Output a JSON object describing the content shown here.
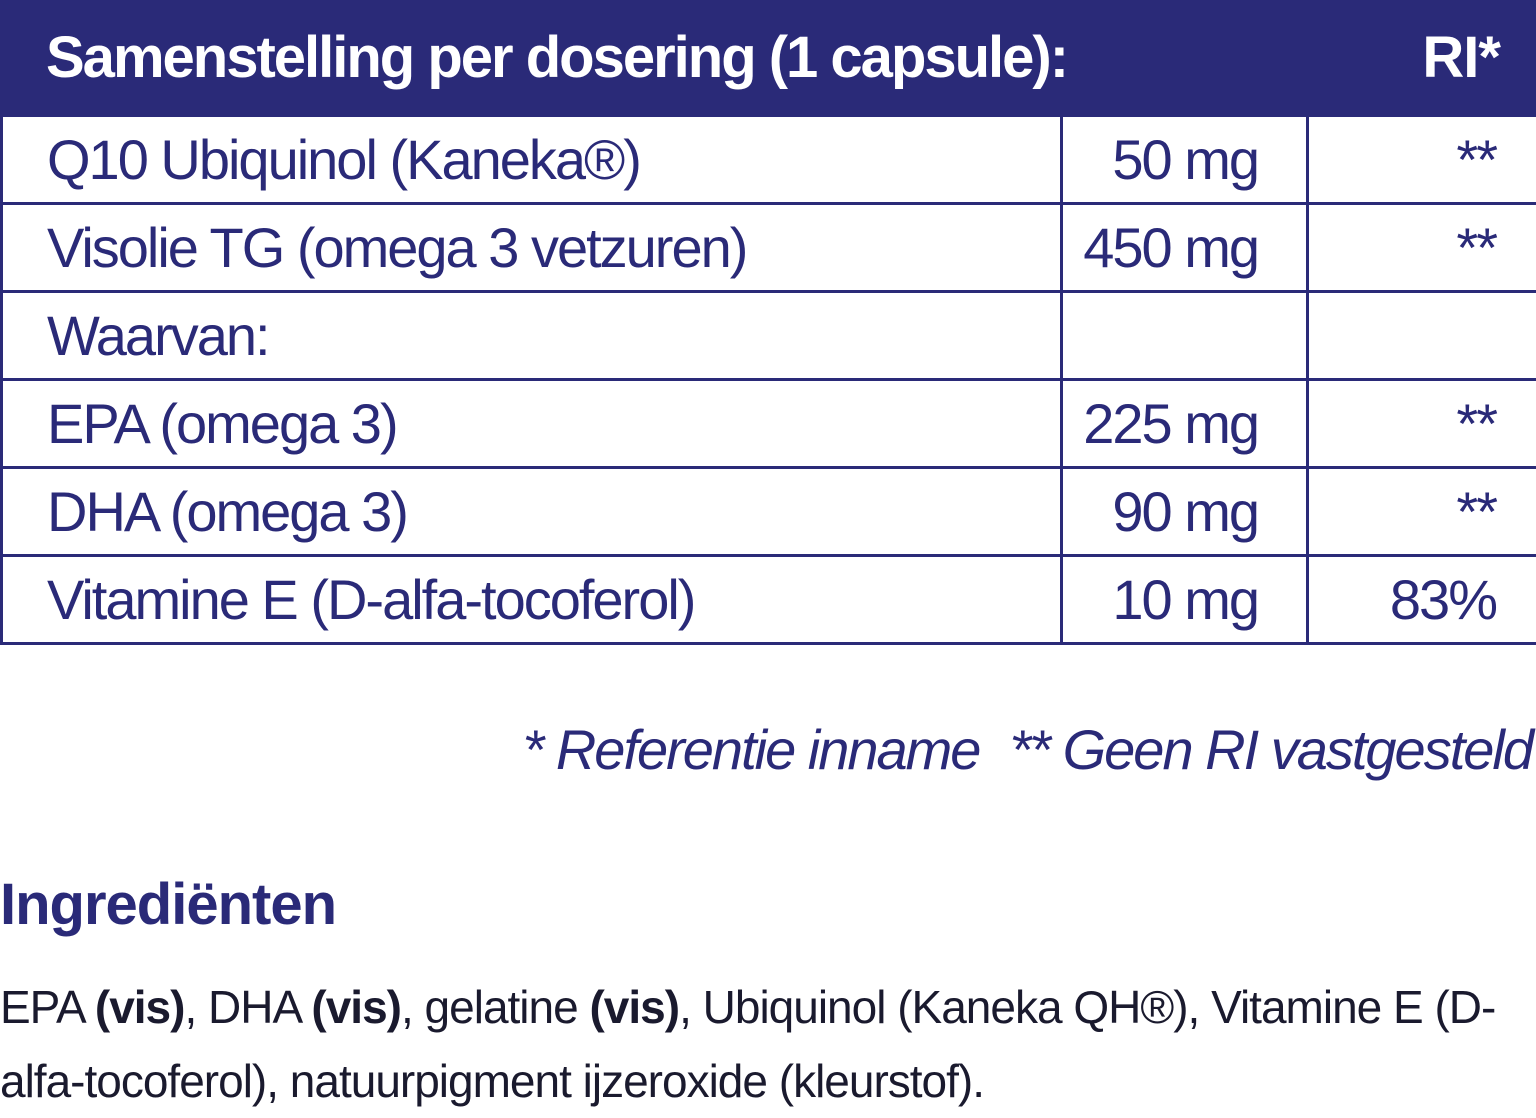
{
  "composition": {
    "title": "Samenstelling per dosering (1 capsule):",
    "ri_header": "RI*",
    "rows": [
      {
        "name": "Q10 Ubiquinol (Kaneka®)",
        "amount": "50 mg",
        "ri": "**"
      },
      {
        "name": "Visolie TG (omega 3 vetzuren)",
        "amount": "450 mg",
        "ri": "**"
      },
      {
        "name": "Waarvan:",
        "amount": "",
        "ri": ""
      },
      {
        "name": "EPA (omega 3)",
        "amount": "225 mg",
        "ri": "**"
      },
      {
        "name": "DHA (omega 3)",
        "amount": "90 mg",
        "ri": "**"
      },
      {
        "name": "Vitamine E (D-alfa-tocoferol)",
        "amount": "10 mg",
        "ri": "83%"
      }
    ]
  },
  "footnotes": {
    "ri_note": "* Referentie inname",
    "no_ri_note": "** Geen RI vastgesteld"
  },
  "ingredients": {
    "title": "Ingrediënten",
    "parts": [
      {
        "text": "EPA ",
        "bold": false
      },
      {
        "text": "(vis)",
        "bold": true
      },
      {
        "text": ", DHA ",
        "bold": false
      },
      {
        "text": "(vis)",
        "bold": true
      },
      {
        "text": ", gelatine ",
        "bold": false
      },
      {
        "text": "(vis)",
        "bold": true
      },
      {
        "text": ", Ubiquinol (Kaneka QH®), Vitamine E (D-alfa-tocoferol), natuurpigment ijzeroxide (kleurstof).",
        "bold": false
      }
    ]
  },
  "colors": {
    "brand_navy": "#2a2a78",
    "body_text": "#1a1a2e",
    "background": "#ffffff"
  }
}
